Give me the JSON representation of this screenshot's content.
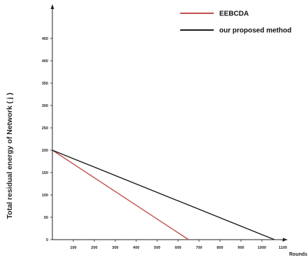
{
  "chart_data": {
    "type": "line",
    "title": "",
    "xlabel": "Rounds",
    "ylabel": "Total residual energy of Network ( j )",
    "xlim": [
      0,
      1150
    ],
    "ylim": [
      0,
      500
    ],
    "x_ticks": [
      "100",
      "200",
      "300",
      "400",
      "500",
      "600",
      "700",
      "800",
      "900",
      "1000",
      "1100"
    ],
    "y_ticks": [
      "0",
      "50",
      "100",
      "150",
      "200",
      "250",
      "300",
      "350",
      "400",
      "450"
    ],
    "legend_position": "top-right",
    "grid": false,
    "series": [
      {
        "name": "EEBCDA",
        "color": "#c0504d",
        "x": [
          0,
          650
        ],
        "y": [
          200,
          0
        ]
      },
      {
        "name": "our proposed method",
        "color": "#1a1a1a",
        "x": [
          0,
          1060
        ],
        "y": [
          200,
          0
        ]
      }
    ]
  }
}
